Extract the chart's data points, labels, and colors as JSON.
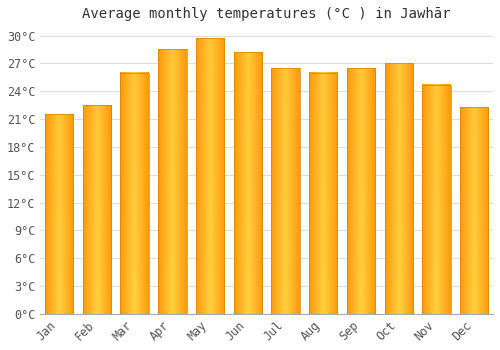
{
  "title": "Average monthly temperatures (°C ) in Jawhār",
  "months": [
    "Jan",
    "Feb",
    "Mar",
    "Apr",
    "May",
    "Jun",
    "Jul",
    "Aug",
    "Sep",
    "Oct",
    "Nov",
    "Dec"
  ],
  "values": [
    21.5,
    22.5,
    26.0,
    28.5,
    29.7,
    28.2,
    26.5,
    26.0,
    26.5,
    27.0,
    24.7,
    22.3
  ],
  "bar_color_light": "#FFD060",
  "bar_color_dark": "#FFA500",
  "bar_edge_color": "#CC8800",
  "background_color": "#FFFFFF",
  "grid_color": "#DDDDDD",
  "ylim": [
    0,
    31
  ],
  "yticks": [
    0,
    3,
    6,
    9,
    12,
    15,
    18,
    21,
    24,
    27,
    30
  ],
  "ytick_labels": [
    "0°C",
    "3°C",
    "6°C",
    "9°C",
    "12°C",
    "15°C",
    "18°C",
    "21°C",
    "24°C",
    "27°C",
    "30°C"
  ],
  "title_fontsize": 10,
  "tick_fontsize": 8.5,
  "figsize": [
    5.0,
    3.5
  ],
  "dpi": 100
}
